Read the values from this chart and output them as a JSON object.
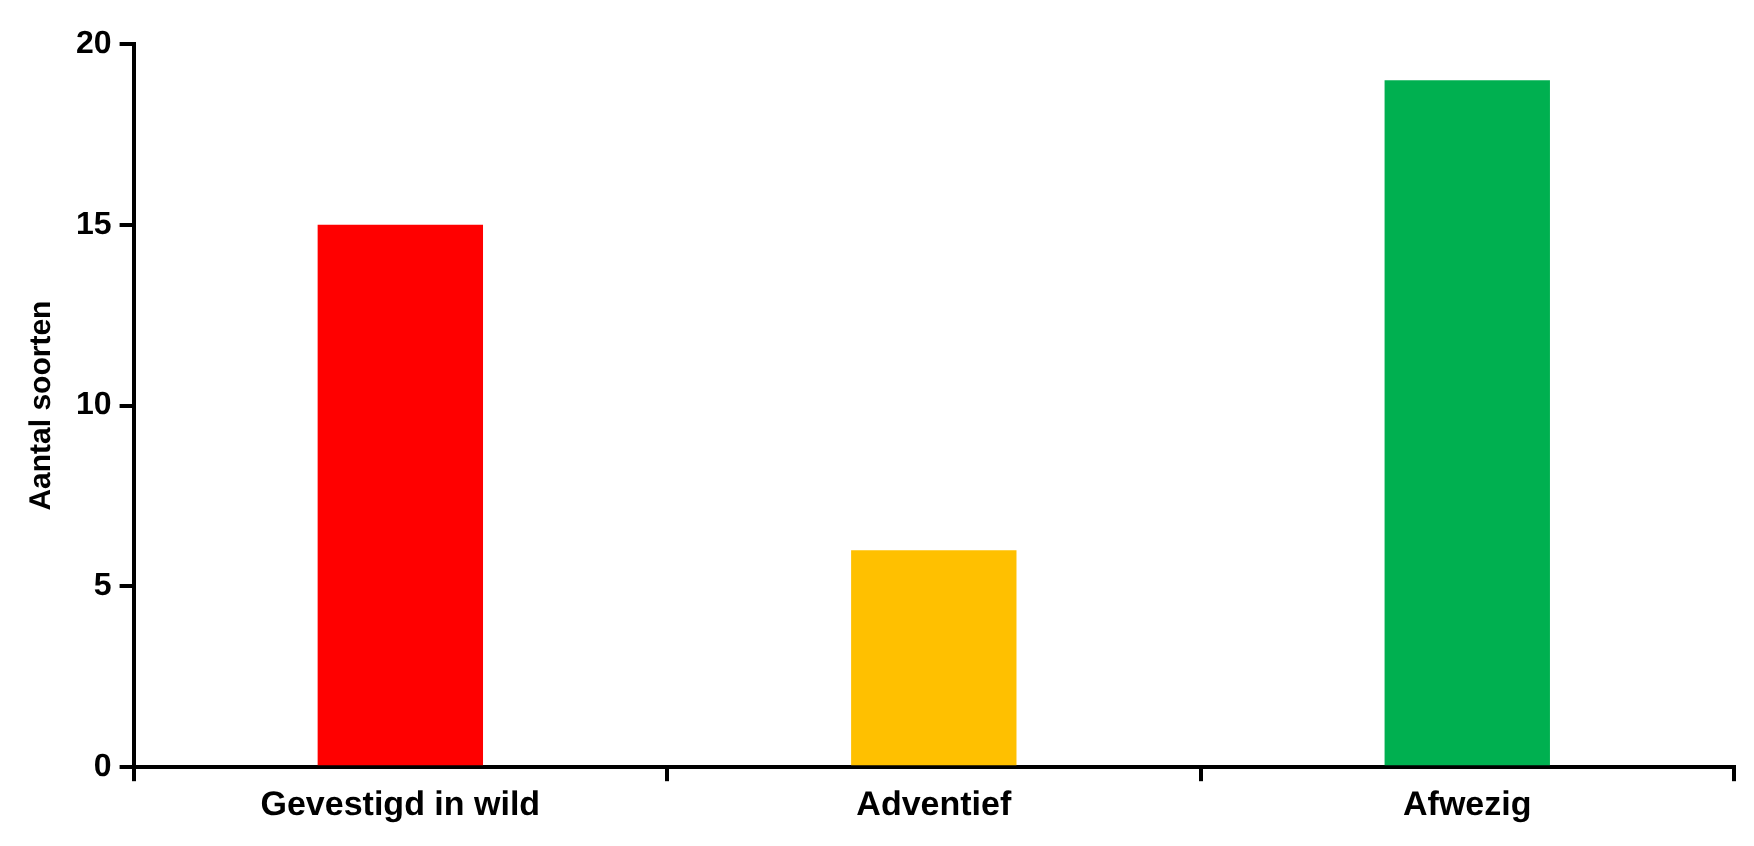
{
  "chart_data": {
    "type": "bar",
    "ylabel": "Aantal soorten",
    "categories": [
      "Gevestigd in wild",
      "Adventief",
      "Afwezig"
    ],
    "values": [
      15,
      6,
      19
    ],
    "colors": [
      "#ff0000",
      "#ffc000",
      "#00b050"
    ],
    "ylim": [
      0,
      20
    ],
    "yticks": [
      0,
      5,
      10,
      15,
      20
    ],
    "grid": false,
    "legend": false
  }
}
